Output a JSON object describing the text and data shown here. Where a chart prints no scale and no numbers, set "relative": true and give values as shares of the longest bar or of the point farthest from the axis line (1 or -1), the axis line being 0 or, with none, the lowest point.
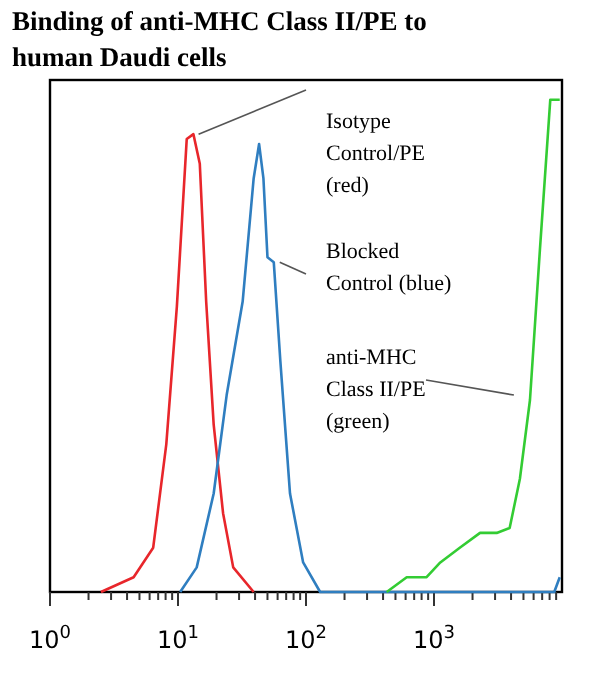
{
  "chart_data": {
    "type": "line",
    "title": "Binding of anti-MHC Class II/PE to human Daudi cells",
    "relative": true,
    "log": "x",
    "xlim": [
      1,
      10000
    ],
    "xticks": [
      {
        "value": 1,
        "label": "10$^{0}$"
      },
      {
        "value": 2,
        "label": null
      },
      {
        "value": 3,
        "label": null
      },
      {
        "value": 4,
        "label": null
      },
      {
        "value": 5,
        "label": null
      },
      {
        "value": 6,
        "label": null
      },
      {
        "value": 7,
        "label": null
      },
      {
        "value": 8,
        "label": null
      },
      {
        "value": 9,
        "label": null
      },
      {
        "value": 10,
        "label": "10$^{1}$"
      },
      {
        "value": 20,
        "label": null
      },
      {
        "value": 30,
        "label": null
      },
      {
        "value": 40,
        "label": null
      },
      {
        "value": 50,
        "label": null
      },
      {
        "value": 60,
        "label": null
      },
      {
        "value": 70,
        "label": null
      },
      {
        "value": 80,
        "label": null
      },
      {
        "value": 90,
        "label": null
      },
      {
        "value": 100,
        "label": "10$^{2}$"
      },
      {
        "value": 200,
        "label": null
      },
      {
        "value": 300,
        "label": null
      },
      {
        "value": 400,
        "label": null
      },
      {
        "value": 500,
        "label": null
      },
      {
        "value": 600,
        "label": null
      },
      {
        "value": 700,
        "label": null
      },
      {
        "value": 800,
        "label": null
      },
      {
        "value": 900,
        "label": null
      },
      {
        "value": 1000,
        "label": "10$^{3}$"
      },
      {
        "value": 2000,
        "label": null
      },
      {
        "value": 3000,
        "label": null
      },
      {
        "value": 4000,
        "label": null
      },
      {
        "value": 5000,
        "label": null
      },
      {
        "value": 6000,
        "label": null
      },
      {
        "value": 7000,
        "label": null
      },
      {
        "value": 8000,
        "label": null
      },
      {
        "value": 9000,
        "label": null
      }
    ],
    "marker": "none",
    "line_style": "solid",
    "grid": false,
    "tick_labels": "x",
    "series": [
      {
        "color": "#e8262b",
        "x": [
          2.5,
          4.5,
          6.4,
          8.1,
          9.8,
          11.7,
          13.2,
          14.8,
          16.6,
          19,
          22.5,
          27,
          39
        ],
        "values": [
          0,
          0.03,
          0.09,
          0.3,
          0.58,
          0.92,
          0.93,
          0.87,
          0.59,
          0.34,
          0.16,
          0.05,
          0
        ]
      },
      {
        "color": "#2f7ec0",
        "x": [
          10.4,
          14,
          19,
          24,
          32,
          39,
          43,
          46.5,
          50,
          56,
          63,
          75,
          95,
          129,
          8700,
          9600
        ],
        "values": [
          0,
          0.05,
          0.2,
          0.4,
          0.59,
          0.84,
          0.91,
          0.84,
          0.68,
          0.67,
          0.47,
          0.2,
          0.06,
          0,
          0,
          0.03
        ]
      },
      {
        "color": "#33cc33",
        "x": [
          427,
          612,
          875,
          1120,
          1590,
          2290,
          3090,
          3900,
          4690,
          5620,
          6740,
          8100,
          9600
        ],
        "values": [
          0,
          0.03,
          0.03,
          0.06,
          0.09,
          0.12,
          0.12,
          0.13,
          0.23,
          0.39,
          0.7,
          1,
          1
        ]
      }
    ],
    "annotations": [
      {
        "text": "Isotype\nControl/PE\n(red)",
        "x": 13,
        "y": 0.93
      },
      {
        "text": "Blocked\nControl (blue)",
        "x": 56,
        "y": 0.67
      },
      {
        "text": "anti-MHC\nClass II/PE\n(green)",
        "x": 4690,
        "y": 0.4
      }
    ]
  }
}
